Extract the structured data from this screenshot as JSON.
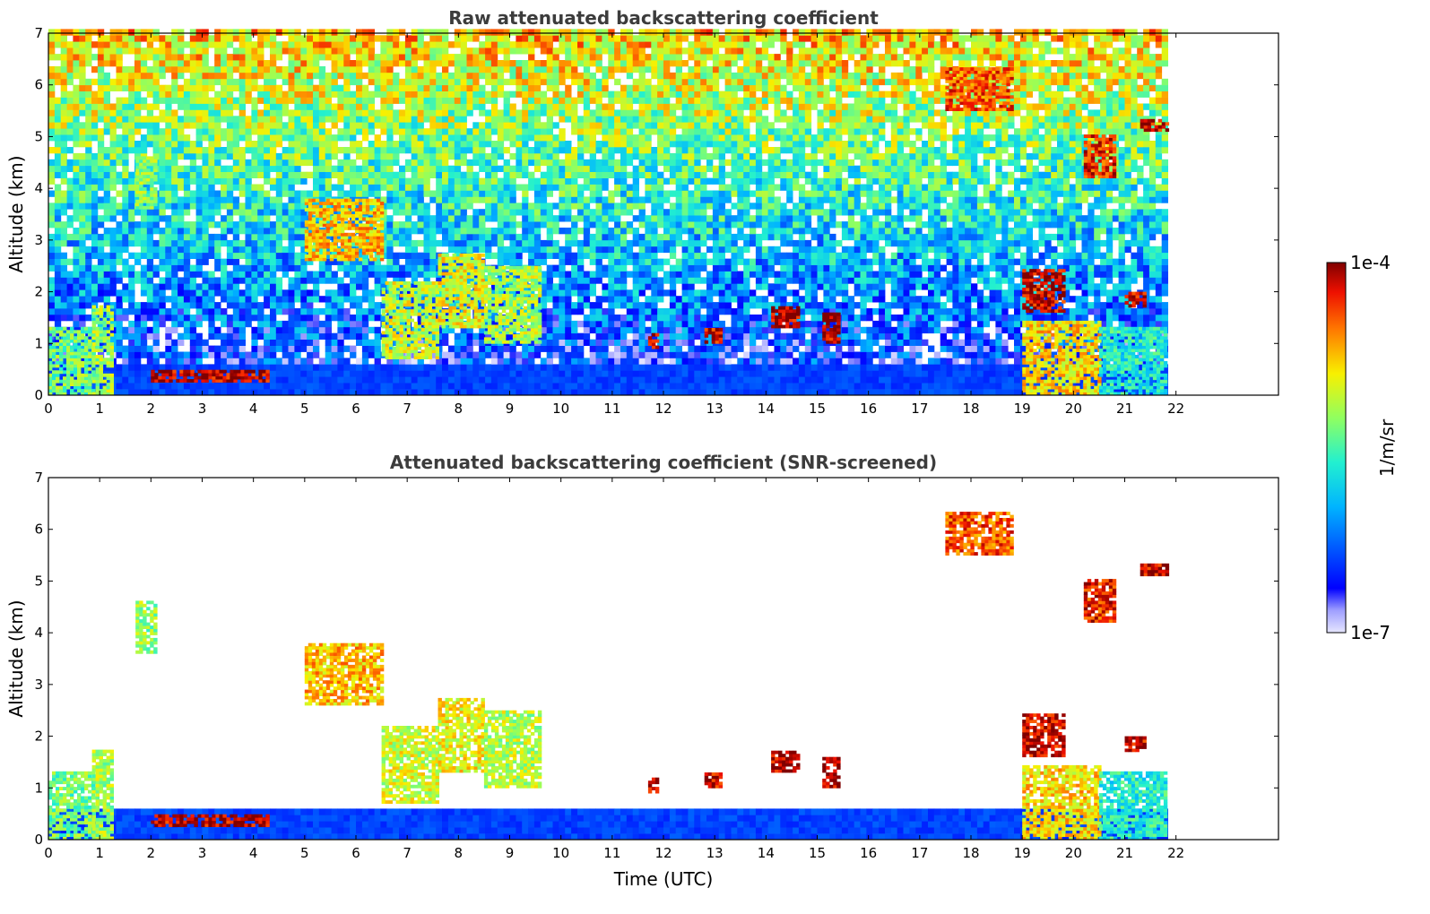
{
  "figure": {
    "x_label": "Time (UTC)",
    "y_label": "Altitude (km)"
  },
  "colorbar": {
    "label": "1/m/sr",
    "max_label": "1e-4",
    "min_label": "1e-7",
    "scale": "log",
    "colormap": "jet",
    "min_color": "#e6e6ff",
    "max_color": "#800000"
  },
  "chart_data": [
    {
      "type": "heatmap",
      "title": "Raw attenuated backscattering coefficient",
      "xlabel": "",
      "ylabel": "Altitude (km)",
      "xlim": [
        0,
        24
      ],
      "ylim": [
        0,
        7
      ],
      "data_end_time": 21.8,
      "x_ticks": [
        "0",
        "1",
        "2",
        "3",
        "4",
        "5",
        "6",
        "7",
        "8",
        "9",
        "10",
        "11",
        "12",
        "13",
        "14",
        "15",
        "16",
        "17",
        "18",
        "19",
        "20",
        "21",
        "22"
      ],
      "y_ticks": [
        "0",
        "1",
        "2",
        "3",
        "4",
        "5",
        "6",
        "7"
      ],
      "grid": false,
      "colorbar": "shared, right",
      "noise_filled": true,
      "features": [
        {
          "t0": 0,
          "t1": 0.9,
          "z0": 0,
          "z1": 1.3,
          "level": 0.55
        },
        {
          "t0": 0.85,
          "t1": 1.25,
          "z0": 0,
          "z1": 1.7,
          "level": 0.6
        },
        {
          "t0": 1.7,
          "t1": 2.1,
          "z0": 3.6,
          "z1": 4.6,
          "level": 0.58
        },
        {
          "t0": 2.0,
          "t1": 4.3,
          "z0": 0.25,
          "z1": 0.45,
          "level": 0.96
        },
        {
          "t0": 5.0,
          "t1": 6.5,
          "z0": 2.6,
          "z1": 3.8,
          "level": 0.75
        },
        {
          "t0": 6.5,
          "t1": 7.6,
          "z0": 0.7,
          "z1": 2.2,
          "level": 0.65
        },
        {
          "t0": 7.6,
          "t1": 8.5,
          "z0": 1.3,
          "z1": 2.7,
          "level": 0.68
        },
        {
          "t0": 8.5,
          "t1": 9.6,
          "z0": 1.0,
          "z1": 2.5,
          "level": 0.62
        },
        {
          "t0": 11.7,
          "t1": 11.9,
          "z0": 0.9,
          "z1": 1.2,
          "level": 0.95
        },
        {
          "t0": 12.8,
          "t1": 13.1,
          "z0": 1.0,
          "z1": 1.3,
          "level": 0.95
        },
        {
          "t0": 14.1,
          "t1": 14.6,
          "z0": 1.3,
          "z1": 1.7,
          "level": 0.97
        },
        {
          "t0": 15.1,
          "t1": 15.4,
          "z0": 1.0,
          "z1": 1.6,
          "level": 0.97
        },
        {
          "t0": 17.5,
          "t1": 18.8,
          "z0": 5.5,
          "z1": 6.3,
          "level": 0.85
        },
        {
          "t0": 19.0,
          "t1": 20.5,
          "z0": 0,
          "z1": 1.4,
          "level": 0.72
        },
        {
          "t0": 19.0,
          "t1": 19.8,
          "z0": 1.6,
          "z1": 2.4,
          "level": 0.95
        },
        {
          "t0": 20.5,
          "t1": 21.8,
          "z0": 0,
          "z1": 1.3,
          "level": 0.45
        },
        {
          "t0": 20.2,
          "t1": 20.8,
          "z0": 4.2,
          "z1": 5.0,
          "level": 0.9
        },
        {
          "t0": 21.3,
          "t1": 21.8,
          "z0": 5.1,
          "z1": 5.3,
          "level": 0.95
        },
        {
          "t0": 21.0,
          "t1": 21.4,
          "z0": 1.7,
          "z1": 2.0,
          "level": 0.95
        }
      ]
    },
    {
      "type": "heatmap",
      "title": "Attenuated backscattering coefficient (SNR-screened)",
      "xlabel": "Time (UTC)",
      "ylabel": "Altitude (km)",
      "xlim": [
        0,
        24
      ],
      "ylim": [
        0,
        7
      ],
      "data_end_time": 21.8,
      "x_ticks": [
        "0",
        "1",
        "2",
        "3",
        "4",
        "5",
        "6",
        "7",
        "8",
        "9",
        "10",
        "11",
        "12",
        "13",
        "14",
        "15",
        "16",
        "17",
        "18",
        "19",
        "20",
        "21",
        "22"
      ],
      "y_ticks": [
        "0",
        "1",
        "2",
        "3",
        "4",
        "5",
        "6",
        "7"
      ],
      "grid": false,
      "colorbar": "shared, right",
      "noise_filled": false,
      "features": [
        {
          "t0": 0,
          "t1": 0.9,
          "z0": 0,
          "z1": 1.3,
          "level": 0.55
        },
        {
          "t0": 0.85,
          "t1": 1.25,
          "z0": 0,
          "z1": 1.7,
          "level": 0.6
        },
        {
          "t0": 1.7,
          "t1": 2.1,
          "z0": 3.6,
          "z1": 4.6,
          "level": 0.58
        },
        {
          "t0": 2.0,
          "t1": 4.3,
          "z0": 0.25,
          "z1": 0.45,
          "level": 0.96
        },
        {
          "t0": 5.0,
          "t1": 6.5,
          "z0": 2.6,
          "z1": 3.8,
          "level": 0.75
        },
        {
          "t0": 6.5,
          "t1": 7.6,
          "z0": 0.7,
          "z1": 2.2,
          "level": 0.65
        },
        {
          "t0": 7.6,
          "t1": 8.5,
          "z0": 1.3,
          "z1": 2.7,
          "level": 0.68
        },
        {
          "t0": 8.5,
          "t1": 9.6,
          "z0": 1.0,
          "z1": 2.5,
          "level": 0.62
        },
        {
          "t0": 11.7,
          "t1": 11.9,
          "z0": 0.9,
          "z1": 1.2,
          "level": 0.95
        },
        {
          "t0": 12.8,
          "t1": 13.1,
          "z0": 1.0,
          "z1": 1.3,
          "level": 0.95
        },
        {
          "t0": 14.1,
          "t1": 14.6,
          "z0": 1.3,
          "z1": 1.7,
          "level": 0.97
        },
        {
          "t0": 15.1,
          "t1": 15.4,
          "z0": 1.0,
          "z1": 1.6,
          "level": 0.97
        },
        {
          "t0": 17.5,
          "t1": 18.8,
          "z0": 5.5,
          "z1": 6.3,
          "level": 0.85
        },
        {
          "t0": 19.0,
          "t1": 20.5,
          "z0": 0,
          "z1": 1.4,
          "level": 0.72
        },
        {
          "t0": 19.0,
          "t1": 19.8,
          "z0": 1.6,
          "z1": 2.4,
          "level": 0.95
        },
        {
          "t0": 20.5,
          "t1": 21.8,
          "z0": 0,
          "z1": 1.3,
          "level": 0.45
        },
        {
          "t0": 20.2,
          "t1": 20.8,
          "z0": 4.2,
          "z1": 5.0,
          "level": 0.9
        },
        {
          "t0": 21.3,
          "t1": 21.8,
          "z0": 5.1,
          "z1": 5.3,
          "level": 0.95
        },
        {
          "t0": 21.0,
          "t1": 21.4,
          "z0": 1.7,
          "z1": 2.0,
          "level": 0.95
        }
      ]
    }
  ]
}
